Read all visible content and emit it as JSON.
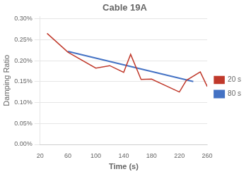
{
  "chart_data": {
    "type": "line",
    "title": "Cable 19A",
    "x_label": "Time (s)",
    "y_label": "Damping Ratio",
    "xlim": [
      20,
      260
    ],
    "xticks": [
      20,
      60,
      100,
      140,
      180,
      220,
      260
    ],
    "ylim": [
      0,
      0.00305
    ],
    "yticks": [
      {
        "value": 0,
        "label": "0.00%"
      },
      {
        "value": 0.0005,
        "label": "0.05%"
      },
      {
        "value": 0.001,
        "label": "0.10%"
      },
      {
        "value": 0.0015,
        "label": "0.15%"
      },
      {
        "value": 0.002,
        "label": "0.20%"
      },
      {
        "value": 0.0025,
        "label": "0.25%"
      },
      {
        "value": 0.003,
        "label": "0.30%"
      }
    ],
    "series": [
      {
        "name": "20 s",
        "color": "#c0392b",
        "x": [
          30,
          60,
          100,
          120,
          140,
          150,
          165,
          180,
          220,
          230,
          250,
          260
        ],
        "values": [
          0.00265,
          0.0022,
          0.00182,
          0.00188,
          0.00172,
          0.00215,
          0.00155,
          0.00156,
          0.00125,
          0.00153,
          0.00173,
          0.00138
        ]
      },
      {
        "name": "80 s",
        "color": "#4472c4",
        "x": [
          60,
          240
        ],
        "values": [
          0.00222,
          0.0015
        ]
      }
    ],
    "grid": "y",
    "legend": "right"
  }
}
